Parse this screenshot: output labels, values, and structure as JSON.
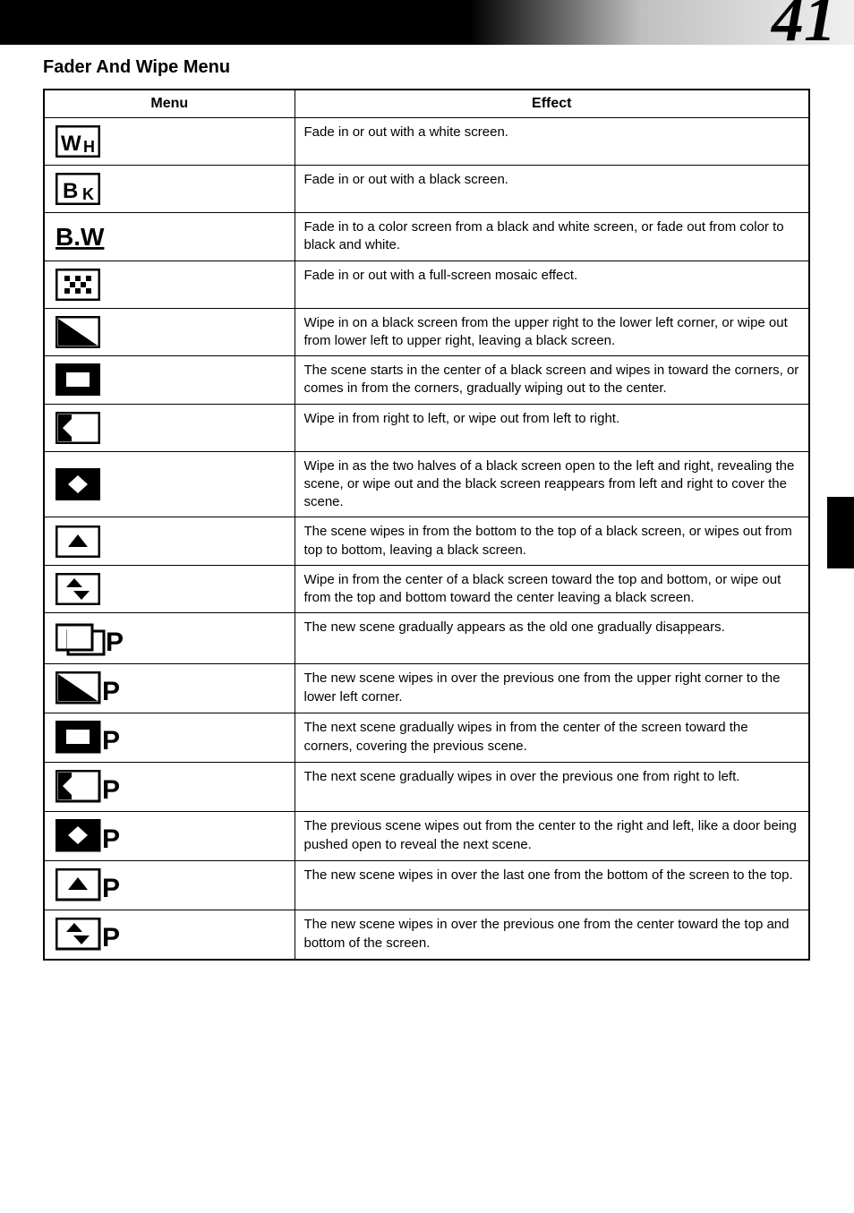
{
  "page_number": "41",
  "section_title": "Fader And Wipe Menu",
  "table": {
    "headers": {
      "menu": "Menu",
      "effect": "Effect"
    },
    "rows": [
      {
        "icon_key": "wh",
        "effect": "Fade in or out with a white screen."
      },
      {
        "icon_key": "bk",
        "effect": "Fade in or out with a black screen."
      },
      {
        "icon_key": "bw",
        "effect": "Fade in to a color screen from a black and white screen, or fade out from color to black and white."
      },
      {
        "icon_key": "mosaic",
        "effect": "Fade in or out with a full-screen mosaic effect."
      },
      {
        "icon_key": "diag",
        "effect": "Wipe in on a black screen from the upper right to the lower left corner, or wipe out from lower left to upper right, leaving a black screen."
      },
      {
        "icon_key": "center",
        "effect": "The scene starts in the center of a black screen and wipes in toward the corners, or comes in from the corners, gradually wiping out to the center."
      },
      {
        "icon_key": "right-left",
        "effect": "Wipe in from right to left, or wipe out from left to right."
      },
      {
        "icon_key": "split-h",
        "effect": "Wipe in as the two halves of a black screen open to the left and right, revealing the scene, or wipe out and the black screen reappears from left and right to cover the scene."
      },
      {
        "icon_key": "up",
        "effect": "The scene wipes in from the bottom to the top of a black screen, or wipes out from top to bottom, leaving a black screen."
      },
      {
        "icon_key": "split-v",
        "effect": "Wipe in from the center of a black screen toward the top and bottom, or wipe out from the top and bottom toward the center leaving a black screen."
      },
      {
        "icon_key": "overlap-p",
        "effect": "The new scene gradually appears as the old one gradually disappears."
      },
      {
        "icon_key": "diag-p",
        "effect": "The new scene wipes in over the previous one from the upper right corner to the lower left corner."
      },
      {
        "icon_key": "center-p",
        "effect": "The next scene gradually wipes in from the center of the screen toward the corners, covering the previous scene."
      },
      {
        "icon_key": "right-left-p",
        "effect": "The next scene gradually wipes in over the previous one from right to left."
      },
      {
        "icon_key": "split-h-p",
        "effect": "The previous scene wipes out from the center to the right and left, like a door being pushed open to reveal the next scene."
      },
      {
        "icon_key": "up-p",
        "effect": "The new scene wipes in over the last one from the bottom of the screen to the top."
      },
      {
        "icon_key": "split-v-p",
        "effect": "The new scene wipes in over the previous one from the center toward the top and bottom of the screen."
      }
    ]
  },
  "icons": {
    "wh": "<svg width='50' height='36' viewBox='0 0 50 36'><rect x='1' y='1' width='48' height='34' fill='#fff' stroke='#000' stroke-width='3'/><text x='6' y='28' font-family='Arial' font-weight='bold' font-size='24' fill='#000'>W</text><text x='31' y='30' font-family='Arial' font-weight='bold' font-size='18' fill='#000'>H</text></svg>",
    "bk": "<svg width='50' height='36' viewBox='0 0 50 36'><rect x='1' y='1' width='48' height='34' fill='#fff' stroke='#000' stroke-width='3'/><text x='8' y='28' font-family='Arial' font-weight='bold' font-size='24' fill='#000'>B</text><text x='30' y='30' font-family='Arial' font-weight='bold' font-size='18' fill='#000'>K</text></svg>",
    "bw": "<svg width='56' height='36' viewBox='0 0 56 36'><text x='0' y='28' font-family='Arial' font-weight='bold' font-size='28' fill='#000' text-decoration='underline'>B.W</text></svg>",
    "mosaic": "<svg width='50' height='36' viewBox='0 0 50 36'><rect x='1' y='1' width='48' height='34' fill='#fff' stroke='#000' stroke-width='3'/><rect x='10' y='8' width='6' height='6' fill='#000'/><rect x='22' y='8' width='6' height='6' fill='#000'/><rect x='34' y='8' width='6' height='6' fill='#000'/><rect x='16' y='15' width='6' height='6' fill='#000'/><rect x='28' y='15' width='6' height='6' fill='#000'/><rect x='10' y='22' width='6' height='6' fill='#000'/><rect x='22' y='22' width='6' height='6' fill='#000'/><rect x='34' y='22' width='6' height='6' fill='#000'/></svg>",
    "diag": "<svg width='50' height='36' viewBox='0 0 50 36'><rect x='1' y='1' width='48' height='34' fill='#fff' stroke='#000' stroke-width='3'/><path d='M 3 33 L 3 3 L 47 33 Z' fill='#000'/></svg>",
    "center": "<svg width='50' height='36' viewBox='0 0 50 36'><rect x='1' y='1' width='48' height='34' fill='#000' stroke='#000' stroke-width='3'/><rect x='12' y='10' width='26' height='16' fill='#fff'/></svg>",
    "right-left": "<svg width='50' height='36' viewBox='0 0 50 36'><rect x='1' y='1' width='48' height='34' fill='#fff' stroke='#000' stroke-width='3'/><rect x='3' y='3' width='15' height='30' fill='#000'/><path d='M 18 8 L 18 28 L 8 18 Z' fill='#fff'/></svg>",
    "split-h": "<svg width='50' height='36' viewBox='0 0 50 36'><rect x='1' y='1' width='48' height='34' fill='#000' stroke='#000' stroke-width='3'/><path d='M 25 8 L 25 28 L 14 18 Z' fill='#fff'/><path d='M 25 8 L 25 28 L 36 18 Z' fill='#fff'/></svg>",
    "up": "<svg width='50' height='36' viewBox='0 0 50 36'><rect x='1' y='1' width='48' height='34' fill='#fff' stroke='#000' stroke-width='3'/><path d='M 14 24 L 36 24 L 25 10 Z' fill='#000'/></svg>",
    "split-v": "<svg width='50' height='36' viewBox='0 0 50 36'><rect x='1' y='1' width='48' height='34' fill='#fff' stroke='#000' stroke-width='3'/><path d='M 12 16 L 30 16 L 21 6 Z' fill='#000'/><path d='M 20 20 L 38 20 L 29 30 Z' fill='#000'/></svg>",
    "overlap-p": "<svg width='78' height='40' viewBox='0 0 78 40'><rect x='1' y='5' width='40' height='28' fill='#fff' stroke='#000' stroke-width='3'/><rect x='14' y='12' width='40' height='26' fill='#fff' stroke='#000' stroke-width='3'/><rect x='13' y='5' width='28' height='28' fill='#fff' stroke='none'/><rect x='1' y='5' width='40' height='28' fill='none' stroke='#000' stroke-width='3'/><text x='56' y='34' font-family='Arial' font-weight='bold' font-size='30' fill='#000'>P</text></svg>",
    "diag-p": "<svg width='78' height='38' viewBox='0 0 78 38'><rect x='1' y='1' width='48' height='34' fill='#fff' stroke='#000' stroke-width='3'/><path d='M 3 33 L 3 3 L 47 33 Z' fill='#000'/><text x='52' y='32' font-family='Arial' font-weight='bold' font-size='30' fill='#000'>P</text></svg>",
    "center-p": "<svg width='78' height='38' viewBox='0 0 78 38'><rect x='1' y='1' width='48' height='34' fill='#000' stroke='#000' stroke-width='3'/><rect x='12' y='10' width='26' height='16' fill='#fff'/><text x='52' y='32' font-family='Arial' font-weight='bold' font-size='30' fill='#000'>P</text></svg>",
    "right-left-p": "<svg width='78' height='38' viewBox='0 0 78 38'><rect x='1' y='1' width='48' height='34' fill='#fff' stroke='#000' stroke-width='3'/><rect x='3' y='3' width='15' height='30' fill='#000'/><path d='M 18 8 L 18 28 L 8 18 Z' fill='#fff'/><text x='52' y='32' font-family='Arial' font-weight='bold' font-size='30' fill='#000'>P</text></svg>",
    "split-h-p": "<svg width='78' height='38' viewBox='0 0 78 38'><rect x='1' y='1' width='48' height='34' fill='#000' stroke='#000' stroke-width='3'/><path d='M 25 8 L 25 28 L 14 18 Z' fill='#fff'/><path d='M 25 8 L 25 28 L 36 18 Z' fill='#fff'/><text x='52' y='32' font-family='Arial' font-weight='bold' font-size='30' fill='#000'>P</text></svg>",
    "up-p": "<svg width='78' height='38' viewBox='0 0 78 38'><rect x='1' y='1' width='48' height='34' fill='#fff' stroke='#000' stroke-width='3'/><path d='M 14 24 L 36 24 L 25 10 Z' fill='#000'/><text x='52' y='32' font-family='Arial' font-weight='bold' font-size='30' fill='#000'>P</text></svg>",
    "split-v-p": "<svg width='78' height='38' viewBox='0 0 78 38'><rect x='1' y='1' width='48' height='34' fill='#fff' stroke='#000' stroke-width='3'/><path d='M 12 16 L 30 16 L 21 6 Z' fill='#000'/><path d='M 20 20 L 38 20 L 29 30 Z' fill='#000'/><text x='52' y='32' font-family='Arial' font-weight='bold' font-size='30' fill='#000'>P</text></svg>"
  },
  "colors": {
    "black": "#000000",
    "white": "#ffffff"
  }
}
